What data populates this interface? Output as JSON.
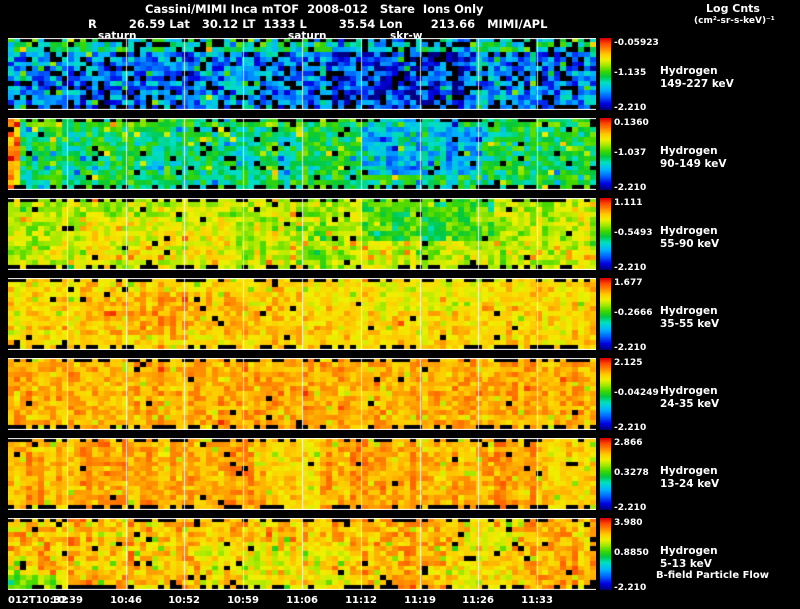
{
  "chart_data": {
    "type": "heatmap",
    "title": "Cassini/MIMI Inca mTOF  2008-012   Stare  Ions Only",
    "ephemeris": "R        26.59 Lat   30.12 LT  1333 L        35.54 Lon       213.66   MIMI/APL",
    "colorbar_title": "Log Cnts",
    "colorbar_units": "(cm²-sr-s-keV)⁻¹",
    "footer_label": "B-field Particle Flow",
    "x_ticks": [
      "012T10:32",
      "10:39",
      "10:46",
      "10:52",
      "10:59",
      "11:06",
      "11:12",
      "11:19",
      "11:26",
      "11:33"
    ],
    "annotations": [
      {
        "label": "saturn"
      },
      {
        "label": "saturn"
      },
      {
        "label": "skr-w"
      }
    ],
    "colormap": [
      {
        "pos": 0.0,
        "color": "#000080"
      },
      {
        "pos": 0.08,
        "color": "#0000E0"
      },
      {
        "pos": 0.18,
        "color": "#0060FF"
      },
      {
        "pos": 0.28,
        "color": "#00B4FF"
      },
      {
        "pos": 0.38,
        "color": "#00E0C0"
      },
      {
        "pos": 0.46,
        "color": "#00C840"
      },
      {
        "pos": 0.54,
        "color": "#40D800"
      },
      {
        "pos": 0.62,
        "color": "#A0E800"
      },
      {
        "pos": 0.7,
        "color": "#F0F000"
      },
      {
        "pos": 0.78,
        "color": "#FFC800"
      },
      {
        "pos": 0.86,
        "color": "#FF8000"
      },
      {
        "pos": 0.93,
        "color": "#FF4800"
      },
      {
        "pos": 1.0,
        "color": "#D80000"
      }
    ],
    "panels": [
      {
        "species": "Hydrogen",
        "energy": "149-227 keV",
        "cbar_max": "-0.05923",
        "cbar_mid": "-1.135",
        "cbar_min": "-2.210",
        "render": {
          "seed": 11,
          "base": 0.24,
          "noise": 0.16,
          "col_var": 0.05,
          "black": 0.17,
          "features": [
            {
              "y1": 0.18,
              "dv": 0.18
            },
            {
              "x0": 0.55,
              "x1": 0.78,
              "dv": -0.1
            }
          ],
          "speckles": [
            {
              "p": 0.05,
              "dv": 0.22
            },
            {
              "p": 0.1,
              "dv": -0.1
            }
          ]
        }
      },
      {
        "species": "Hydrogen",
        "energy": "90-149 keV",
        "cbar_max": "0.1360",
        "cbar_mid": "-1.037",
        "cbar_min": "-2.210",
        "render": {
          "seed": 22,
          "base": 0.46,
          "noise": 0.12,
          "col_var": 0.05,
          "black": 0.05,
          "features": [
            {
              "x1": 0.012,
              "dv": 0.38
            },
            {
              "x0": 0.6,
              "x1": 0.8,
              "y1": 0.75,
              "dv": -0.16
            },
            {
              "y1": 0.1,
              "dv": 0.06
            }
          ],
          "speckles": [
            {
              "p": 0.06,
              "dv": 0.2
            },
            {
              "p": 0.05,
              "dv": -0.15
            }
          ]
        }
      },
      {
        "species": "Hydrogen",
        "energy": "55-90 keV",
        "cbar_max": "1.111",
        "cbar_mid": "-0.5493",
        "cbar_min": "-2.210",
        "render": {
          "seed": 33,
          "base": 0.64,
          "noise": 0.09,
          "col_var": 0.04,
          "black": 0.02,
          "features": [
            {
              "x0": 0.6,
              "x1": 0.82,
              "y1": 0.55,
              "dv": -0.13
            },
            {
              "x0": 0.13,
              "x1": 0.38,
              "y0": 0.25,
              "y1": 0.85,
              "dv": 0.05
            }
          ],
          "speckles": [
            {
              "p": 0.08,
              "dv": 0.13
            },
            {
              "p": 0.04,
              "dv": -0.1
            }
          ]
        }
      },
      {
        "species": "Hydrogen",
        "energy": "35-55 keV",
        "cbar_max": "1.677",
        "cbar_mid": "-0.2666",
        "cbar_min": "-2.210",
        "render": {
          "seed": 44,
          "base": 0.75,
          "noise": 0.07,
          "col_var": 0.035,
          "black": 0.02,
          "features": [
            {
              "x0": 0.15,
              "x1": 0.42,
              "y0": 0.2,
              "y1": 0.75,
              "dv": 0.05
            },
            {
              "x0": 0.62,
              "x1": 0.8,
              "y1": 0.45,
              "dv": -0.05
            }
          ],
          "speckles": [
            {
              "p": 0.06,
              "dv": -0.1
            },
            {
              "p": 0.04,
              "dv": 0.08
            }
          ]
        }
      },
      {
        "species": "Hydrogen",
        "energy": "24-35 keV",
        "cbar_max": "2.125",
        "cbar_mid": "-0.04249",
        "cbar_min": "-2.210",
        "render": {
          "seed": 55,
          "base": 0.81,
          "noise": 0.06,
          "col_var": 0.03,
          "black": 0.015,
          "features": [],
          "speckles": [
            {
              "p": 0.07,
              "dv": -0.11
            },
            {
              "p": 0.03,
              "dv": 0.07
            }
          ]
        }
      },
      {
        "species": "Hydrogen",
        "energy": "13-24 keV",
        "cbar_max": "2.866",
        "cbar_mid": "0.3278",
        "cbar_min": "-2.210",
        "render": {
          "seed": 66,
          "base": 0.82,
          "noise": 0.06,
          "col_var": 0.04,
          "black": 0.015,
          "features": [
            {
              "x0": 0.43,
              "x1": 0.53,
              "dv": -0.06
            },
            {
              "x0": 0.9,
              "dv": -0.04
            }
          ],
          "speckles": [
            {
              "p": 0.08,
              "dv": -0.12
            }
          ]
        }
      },
      {
        "species": "Hydrogen",
        "energy": "5-13 keV",
        "cbar_max": "3.980",
        "cbar_mid": "0.8850",
        "cbar_min": "-2.210",
        "render": {
          "seed": 77,
          "base": 0.79,
          "noise": 0.09,
          "col_var": 0.05,
          "black": 0.03,
          "features": [
            {
              "x0": 0.32,
              "x1": 0.58,
              "y0": 0.3,
              "dv": -0.06
            },
            {
              "x1": 0.08,
              "y0": 0.75,
              "dv": -0.22
            },
            {
              "x0": 0.75,
              "x1": 0.85,
              "dv": -0.05
            }
          ],
          "speckles": [
            {
              "p": 0.09,
              "dv": -0.13
            },
            {
              "p": 0.03,
              "dv": 0.06
            }
          ]
        }
      }
    ]
  }
}
